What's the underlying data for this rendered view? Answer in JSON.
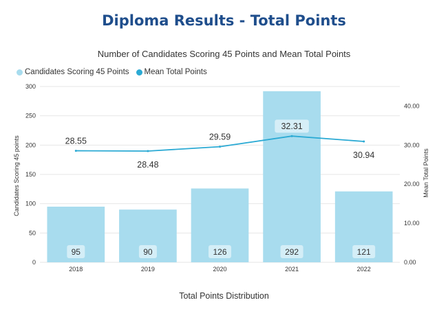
{
  "page": {
    "title": "Diploma Results - Total Points"
  },
  "chart_data": {
    "type": "bar",
    "title": "Number of Candidates Scoring 45 Points and Mean Total Points",
    "xlabel": "Total Points Distribution",
    "ylabel": "Candidates Scoring 45 points",
    "y2label": "Mean Total Points",
    "categories": [
      "2018",
      "2019",
      "2020",
      "2021",
      "2022"
    ],
    "series": [
      {
        "name": "Candidates Scoring 45 Points",
        "type": "bar",
        "axis": "left",
        "values": [
          95,
          90,
          126,
          292,
          121
        ],
        "labels": [
          "95",
          "90",
          "126",
          "292",
          "121"
        ],
        "color": "#a8dcee"
      },
      {
        "name": "Mean Total Points",
        "type": "line",
        "axis": "right",
        "values": [
          28.55,
          28.48,
          29.59,
          32.31,
          30.94
        ],
        "labels": [
          "28.55",
          "28.48",
          "29.59",
          "32.31",
          "30.94"
        ],
        "color": "#2baad4"
      }
    ],
    "ylim": [
      0,
      300
    ],
    "yticks": [
      "0",
      "50",
      "100",
      "150",
      "200",
      "250",
      "300"
    ],
    "y2lim": [
      0,
      45
    ],
    "y2ticks": [
      "0.00",
      "10.00",
      "20.00",
      "30.00",
      "40.00"
    ],
    "legend_position": "top-left",
    "grid": true,
    "colors": {
      "bar": "#a8dcee",
      "line": "#2baad4",
      "grid": "#e6e6e6",
      "title": "#1f4e8c"
    }
  }
}
